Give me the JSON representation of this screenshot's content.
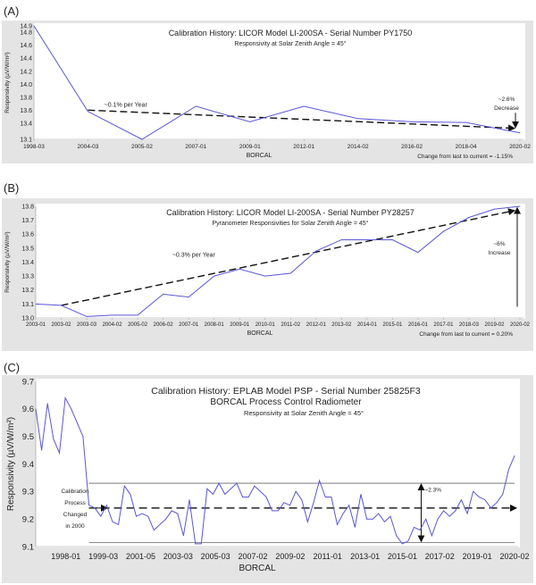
{
  "colors": {
    "series": "#5a55d6",
    "panel": "#e4e4e4",
    "plot": "#ffffff",
    "trend": "#111111"
  },
  "chart_data": [
    {
      "panel_label": "(A)",
      "type": "line",
      "title": "Calibration History:  LICOR Model LI-200SA - Serial Number PY1750",
      "subtitle": "Responsivity at Solar Zenith Angle = 45°",
      "xlabel": "BORCAL",
      "ylabel": "Responsivity (µV/W/m²)",
      "footer": "Change from last to current = -1.15%",
      "categories": [
        "1998-03",
        "2004-03",
        "2005-02",
        "2007-01",
        "2009-01",
        "2012-01",
        "2014-02",
        "2016-02",
        "2018-04",
        "2020-02"
      ],
      "values": [
        14.9,
        13.58,
        13.15,
        13.66,
        13.42,
        13.66,
        13.47,
        13.42,
        13.41,
        13.25
      ],
      "ylim": [
        13.15,
        14.9
      ],
      "yticks": [
        "13.1",
        "13.4",
        "13.6",
        "13.8",
        "14.0",
        "14.2",
        "14.4",
        "14.6",
        "14.8",
        "14.9"
      ],
      "trend": {
        "from": [
          "2004-03",
          13.6
        ],
        "to": [
          "2020-02",
          13.32
        ],
        "label": "~0.1% per Year"
      },
      "annotation": {
        "lines": [
          "~2.6%",
          "Decrease"
        ],
        "arrow_from": 13.56,
        "arrow_to": 13.33
      }
    },
    {
      "panel_label": "(B)",
      "type": "line",
      "title": "Calibration History:  LICOR Model LI-200SA - Serial Number PY28257",
      "subtitle": "Pyranometer Responsivities for Solar Zenith Angle = 45°",
      "xlabel": "BORCAL",
      "ylabel": "Responsivity (µV/W/m²)",
      "footer": "Change from last to current = 0.20%",
      "categories": [
        "2003-01",
        "2003-02",
        "2003-03",
        "2004-02",
        "2005-02",
        "2006-02",
        "2007-01",
        "2008-01",
        "2009-01",
        "2010-01",
        "2011-02",
        "2012-01",
        "2013-02",
        "2014-01",
        "2015-01",
        "2016-01",
        "2017-01",
        "2018-03",
        "2019-02",
        "2020-02"
      ],
      "values": [
        13.1,
        13.09,
        13.01,
        13.02,
        13.02,
        13.17,
        13.15,
        13.3,
        13.35,
        13.3,
        13.32,
        13.48,
        13.56,
        13.56,
        13.56,
        13.47,
        13.62,
        13.72,
        13.78,
        13.8
      ],
      "ylim": [
        13.0,
        13.8
      ],
      "yticks": [
        "13.0",
        "13.1",
        "13.2",
        "13.3",
        "13.4",
        "13.5",
        "13.6",
        "13.7",
        "13.8"
      ],
      "trend": {
        "from": [
          "2003-02",
          13.09
        ],
        "to": [
          "2020-02",
          13.77
        ],
        "label": "~0.3% per Year"
      },
      "annotation": {
        "lines": [
          "~6%",
          "Increase"
        ],
        "arrow_from": 13.08,
        "arrow_to": 13.79
      }
    },
    {
      "panel_label": "(C)",
      "type": "line",
      "title": "Calibration History:  EPLAB Model PSP - Serial Number 25825F3",
      "subtitle": "BORCAL Process Control Radiometer",
      "subtitle2": "Responsivity at Solar Zenith Angle = 45°",
      "xlabel": "BORCAL",
      "ylabel": "Responsivity (µV/W/m²)",
      "xticks": [
        "1998-01",
        "1999-03",
        "2001-05",
        "2003-03",
        "2005-03",
        "2007-02",
        "2009-02",
        "2011-01",
        "2013-01",
        "2015-01",
        "2017-02",
        "2019-01",
        "2020-02"
      ],
      "values": [
        9.6,
        9.45,
        9.62,
        9.49,
        9.44,
        9.64,
        9.6,
        9.55,
        9.5,
        9.25,
        9.24,
        9.21,
        9.25,
        9.19,
        9.18,
        9.32,
        9.29,
        9.21,
        9.22,
        9.21,
        9.16,
        9.18,
        9.2,
        9.23,
        9.22,
        9.14,
        9.27,
        9.11,
        9.11,
        9.31,
        9.29,
        9.33,
        9.29,
        9.31,
        9.33,
        9.28,
        9.28,
        9.32,
        9.3,
        9.28,
        9.23,
        9.23,
        9.26,
        9.25,
        9.3,
        9.27,
        9.19,
        9.26,
        9.34,
        9.28,
        9.28,
        9.18,
        9.22,
        9.25,
        9.17,
        9.29,
        9.2,
        9.2,
        9.22,
        9.19,
        9.21,
        9.14,
        9.11,
        9.12,
        9.17,
        9.16,
        9.2,
        9.14,
        9.2,
        9.23,
        9.21,
        9.23,
        9.27,
        9.22,
        9.3,
        9.28,
        9.27,
        9.24,
        9.26,
        9.29,
        9.38,
        9.43
      ],
      "ylim": [
        9.1,
        9.7
      ],
      "yticks": [
        "9.1",
        "9.2",
        "9.3",
        "9.4",
        "9.5",
        "9.6",
        "9.7"
      ],
      "upper_limit": 9.33,
      "lower_limit": 9.115,
      "mean": 9.24,
      "range_label": "~2.3%",
      "process_note": [
        "Calibration",
        "Process",
        "Changed",
        "in 2000"
      ]
    }
  ]
}
